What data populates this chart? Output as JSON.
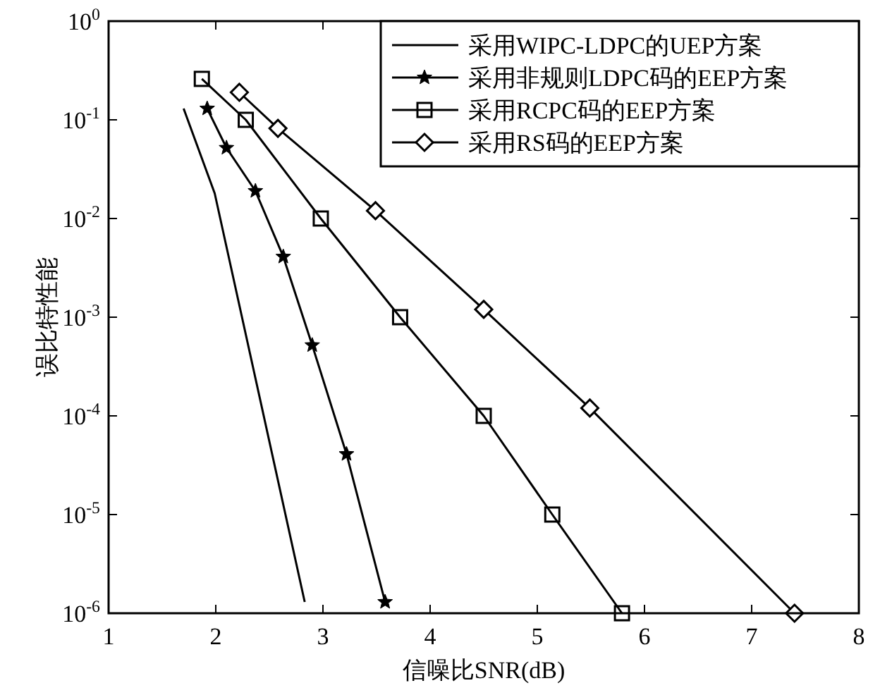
{
  "chart_data": {
    "type": "line",
    "xlabel": "信噪比SNR(dB)",
    "ylabel": "误比特性能",
    "log": "y",
    "grid": false,
    "legend": "top right",
    "line_style": "solid",
    "xlim": [
      1,
      8
    ],
    "xticks": [
      1,
      2,
      3,
      4,
      5,
      6,
      7,
      8
    ],
    "ylim": [
      1e-06,
      1
    ],
    "yticks": [
      {
        "value": 1e-06,
        "label": "10$^{-6}$"
      },
      {
        "value": 1e-05,
        "label": "10$^{-5}$"
      },
      {
        "value": 0.0001,
        "label": "10$^{-4}$"
      },
      {
        "value": 0.001,
        "label": "10$^{-3}$"
      },
      {
        "value": 0.01,
        "label": "10$^{-2}$"
      },
      {
        "value": 0.1,
        "label": "10$^{-1}$"
      },
      {
        "value": 1,
        "label": "10$^{0}$"
      }
    ],
    "series": [
      {
        "name": "采用WIPC-LDPC的UEP方案",
        "color": "#000000",
        "marker": "none",
        "x": [
          1.7,
          1.99,
          2.83
        ],
        "values": [
          0.13,
          0.018,
          1.3e-06
        ]
      },
      {
        "name": "采用非规则LDPC码的EEP方案",
        "color": "#000000",
        "marker": "star",
        "x": [
          1.92,
          2.1,
          2.37,
          2.63,
          2.9,
          3.22,
          3.58
        ],
        "values": [
          0.13,
          0.052,
          0.019,
          0.0041,
          0.00052,
          4.1e-05,
          1.3e-06
        ]
      },
      {
        "name": "采用RCPC码的EEP方案",
        "color": "#000000",
        "marker": "square",
        "x": [
          1.87,
          2.28,
          2.98,
          3.72,
          4.5,
          5.14,
          5.79
        ],
        "values": [
          0.26,
          0.1,
          0.01,
          0.001,
          0.0001,
          1e-05,
          1e-06
        ]
      },
      {
        "name": "采用RS码的EEP方案",
        "color": "#000000",
        "marker": "diamond",
        "x": [
          2.22,
          2.58,
          3.49,
          4.5,
          5.49,
          7.4
        ],
        "values": [
          0.19,
          0.082,
          0.012,
          0.0012,
          0.00012,
          1e-06
        ]
      }
    ]
  }
}
